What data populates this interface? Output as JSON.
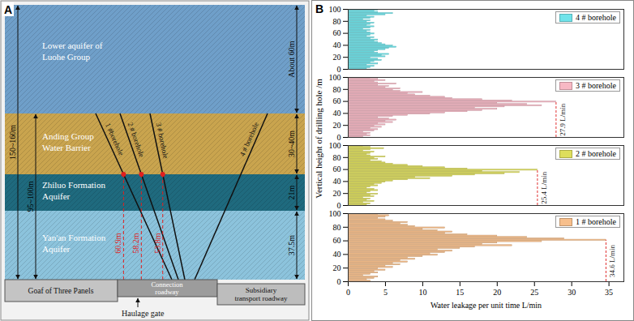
{
  "diagram": {
    "label": "A",
    "layers": [
      {
        "name": [
          "Lower aquifer of",
          "Luohe Group"
        ],
        "color": "#6f9fc9"
      },
      {
        "name": [
          "Anding Group",
          "Water Barrier"
        ],
        "color": "#c9a44e"
      },
      {
        "name": [
          "Zhiluo Formation",
          "Aquifer"
        ],
        "color": "#1f6a7e"
      },
      {
        "name": [
          "Yan'an Formation",
          "Aquifer"
        ],
        "color": "#8cc3dc"
      }
    ],
    "left_dimensions": [
      "150~160m",
      "95~100m"
    ],
    "right_dimensions": [
      "About 60m",
      "30~40m",
      "21m",
      "37.5m"
    ],
    "boreholes": [
      {
        "label": "1 #borehole",
        "height": "60.9m"
      },
      {
        "label": "2 # borehole",
        "height": "58.2m"
      },
      {
        "label": "3 # borehole",
        "height": "53.8m"
      },
      {
        "label": "4 # borehole"
      }
    ],
    "workings": {
      "goaf": "Goaf of Three Panels",
      "connection": [
        "Connection",
        "roadway"
      ],
      "subsidiary": [
        "Subsidiary",
        "transport roadway"
      ],
      "haulage": "Haulage gate"
    }
  },
  "panel_b": {
    "label": "B",
    "y_label": "Vertical height of drilling hole /m"
  },
  "chart_data": [
    {
      "type": "bar",
      "orientation": "horizontal",
      "legend": "top-right",
      "tick_labels": "y",
      "xlim": [
        0,
        37
      ],
      "ylim": [
        0,
        100
      ],
      "yticks": [
        0,
        20,
        40,
        60,
        80,
        100
      ],
      "categories": [
        1,
        3,
        5,
        7,
        9,
        11,
        13,
        15,
        17,
        19,
        21,
        23,
        25,
        27,
        29,
        31,
        33,
        35,
        37,
        39,
        41,
        43,
        45,
        47,
        49,
        51,
        53,
        55,
        57,
        59,
        61,
        63,
        65,
        67,
        69,
        71,
        73,
        75,
        77,
        79,
        81,
        83,
        85,
        87,
        89,
        91,
        93,
        95,
        97,
        99
      ],
      "series": [
        {
          "name": "4 # borehole",
          "color": "#6fe3ea",
          "values": [
            2.5,
            3,
            3.5,
            2.5,
            4,
            3,
            3.5,
            4.5,
            4,
            3,
            5,
            4.5,
            5.5,
            4,
            3.5,
            4,
            5,
            5.5,
            6.5,
            6,
            5,
            4.5,
            4,
            3.5,
            4,
            3,
            3.5,
            2.5,
            3,
            3.5,
            3,
            2.5,
            3,
            2,
            3,
            3.5,
            2.5,
            3,
            3.5,
            2.5,
            3,
            2,
            3,
            3.5,
            2.5,
            5,
            6,
            4,
            3.5,
            4
          ]
        }
      ]
    },
    {
      "type": "bar",
      "orientation": "horizontal",
      "legend": "top-right",
      "tick_labels": "y",
      "xlim": [
        0,
        37
      ],
      "ylim": [
        0,
        100
      ],
      "yticks": [
        0,
        20,
        40,
        60,
        80,
        100
      ],
      "categories": [
        1,
        3,
        5,
        7,
        9,
        11,
        13,
        15,
        17,
        19,
        21,
        23,
        25,
        27,
        29,
        31,
        33,
        35,
        37,
        39,
        41,
        43,
        45,
        47,
        49,
        51,
        53,
        55,
        57,
        59,
        61,
        63,
        65,
        67,
        69,
        71,
        73,
        75,
        77,
        79,
        81,
        83,
        85,
        87,
        89,
        91,
        93,
        95,
        97,
        99
      ],
      "series": [
        {
          "name": "3 # borehole",
          "color": "#f7b8c4",
          "values": [
            2,
            3,
            2.5,
            3,
            2,
            3.5,
            4,
            3,
            4.5,
            3.5,
            5,
            4,
            6,
            5,
            6.5,
            5.5,
            4,
            6,
            8,
            11,
            13,
            16,
            18,
            20,
            17,
            21,
            26,
            24,
            20,
            27.9,
            22,
            18,
            14,
            13,
            11,
            9,
            8,
            10,
            7,
            6,
            7,
            5,
            5.5,
            4,
            6.5,
            4,
            3.5,
            5,
            4,
            3
          ]
        }
      ],
      "annotation": {
        "value": 27.9,
        "label": "27.9 L/min"
      }
    },
    {
      "type": "bar",
      "orientation": "horizontal",
      "legend": "top-right",
      "tick_labels": "y",
      "xlim": [
        0,
        37
      ],
      "ylim": [
        0,
        100
      ],
      "yticks": [
        0,
        20,
        40,
        60,
        80,
        100
      ],
      "categories": [
        1,
        3,
        5,
        7,
        9,
        11,
        13,
        15,
        17,
        19,
        21,
        23,
        25,
        27,
        29,
        31,
        33,
        35,
        37,
        39,
        41,
        43,
        45,
        47,
        49,
        51,
        53,
        55,
        57,
        59,
        61,
        63,
        65,
        67,
        69,
        71,
        73,
        75,
        77,
        79,
        81,
        83,
        85,
        87,
        89,
        91,
        93,
        95,
        97,
        99
      ],
      "series": [
        {
          "name": "2 # borehole",
          "color": "#dede5c",
          "values": [
            2.5,
            3,
            2,
            3.5,
            2.5,
            3,
            2,
            3.5,
            3,
            4,
            2.5,
            3,
            4,
            3.5,
            2.5,
            3,
            4,
            3.5,
            4.5,
            5,
            6,
            8,
            11,
            9,
            14,
            17,
            21,
            23,
            18,
            25.4,
            16,
            13,
            10,
            8,
            6,
            5,
            4.5,
            3,
            4,
            3.5,
            5,
            3,
            2.5,
            3,
            3.5,
            2,
            3,
            4.8,
            3,
            2
          ]
        }
      ],
      "annotation": {
        "value": 25.4,
        "label": "25.4 L/min"
      }
    },
    {
      "type": "bar",
      "orientation": "horizontal",
      "legend": "top-right",
      "tick_labels": true,
      "x_label": "Water leakage per unit time L/min",
      "xlim": [
        0,
        37
      ],
      "xticks": [
        0,
        5,
        10,
        15,
        20,
        25,
        30,
        35
      ],
      "ylim": [
        0,
        100
      ],
      "yticks": [
        0,
        20,
        40,
        60,
        80,
        100
      ],
      "categories": [
        1,
        3,
        5,
        7,
        9,
        11,
        13,
        15,
        17,
        19,
        21,
        23,
        25,
        27,
        29,
        31,
        33,
        35,
        37,
        39,
        41,
        43,
        45,
        47,
        49,
        51,
        53,
        55,
        57,
        59,
        61,
        63,
        65,
        67,
        69,
        71,
        73,
        75,
        77,
        79,
        81,
        83,
        85,
        87,
        89,
        91,
        93,
        95,
        97,
        99
      ],
      "series": [
        {
          "name": "1 # borehole",
          "color": "#f7bf8c",
          "values": [
            3,
            2.5,
            3.5,
            4,
            2,
            3,
            4,
            3.5,
            5,
            4,
            6,
            5,
            7,
            6,
            8,
            7,
            9,
            8,
            10,
            12,
            11,
            13,
            14,
            12,
            15,
            17,
            22,
            18,
            20,
            26,
            34.6,
            29,
            24,
            20,
            16,
            13,
            14,
            12,
            10,
            13,
            9,
            8,
            7,
            8,
            6,
            5,
            4,
            5,
            5.5,
            4
          ]
        }
      ],
      "annotation": {
        "value": 34.6,
        "label": "34.6 L/min"
      }
    }
  ]
}
